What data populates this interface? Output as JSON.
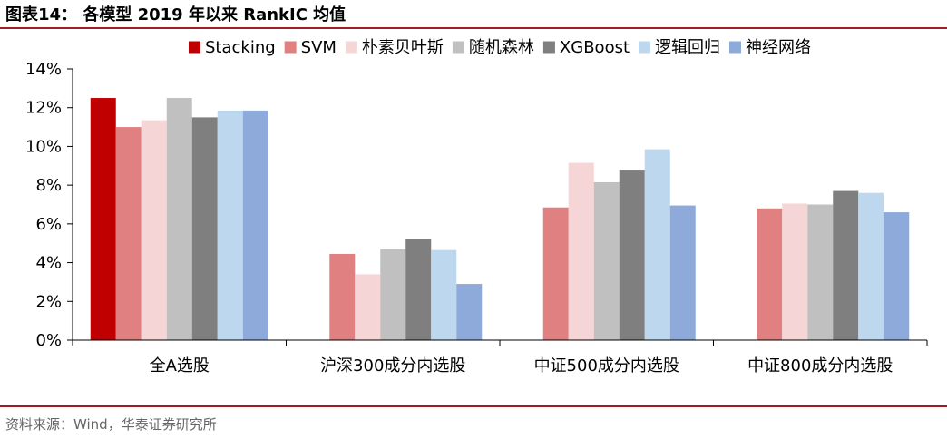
{
  "title": "图表14：  各模型 2019 年以来 RankIC 均值",
  "source": "资料来源：Wind，华泰证券研究所",
  "colors": {
    "rule": "#a01d24",
    "series": [
      "#c00000",
      "#e08080",
      "#f5d5d5",
      "#c0c0c0",
      "#7f7f7f",
      "#bdd7ee",
      "#8eaadb"
    ]
  },
  "chart_data": {
    "type": "bar",
    "categories": [
      "全A选股",
      "沪深300成分内选股",
      "中证500成分内选股",
      "中证800成分内选股"
    ],
    "series": [
      {
        "name": "Stacking",
        "values": [
          12.5,
          null,
          null,
          null
        ]
      },
      {
        "name": "SVM",
        "values": [
          11.0,
          4.45,
          6.85,
          6.8
        ]
      },
      {
        "name": "朴素贝叶斯",
        "values": [
          11.35,
          3.4,
          9.15,
          7.05
        ]
      },
      {
        "name": "随机森林",
        "values": [
          12.5,
          4.7,
          8.15,
          7.0
        ]
      },
      {
        "name": "XGBoost",
        "values": [
          11.5,
          5.2,
          8.8,
          7.7
        ]
      },
      {
        "name": "逻辑回归",
        "values": [
          11.85,
          4.65,
          9.85,
          7.6
        ]
      },
      {
        "name": "神经网络",
        "values": [
          11.85,
          2.9,
          6.95,
          6.6
        ]
      }
    ],
    "ylim": [
      0,
      14
    ],
    "yticks": [
      0,
      2,
      4,
      6,
      8,
      10,
      12,
      14
    ],
    "ytick_labels": [
      "0%",
      "2%",
      "4%",
      "6%",
      "8%",
      "10%",
      "12%",
      "14%"
    ],
    "legend_position": "top",
    "grid": false
  }
}
